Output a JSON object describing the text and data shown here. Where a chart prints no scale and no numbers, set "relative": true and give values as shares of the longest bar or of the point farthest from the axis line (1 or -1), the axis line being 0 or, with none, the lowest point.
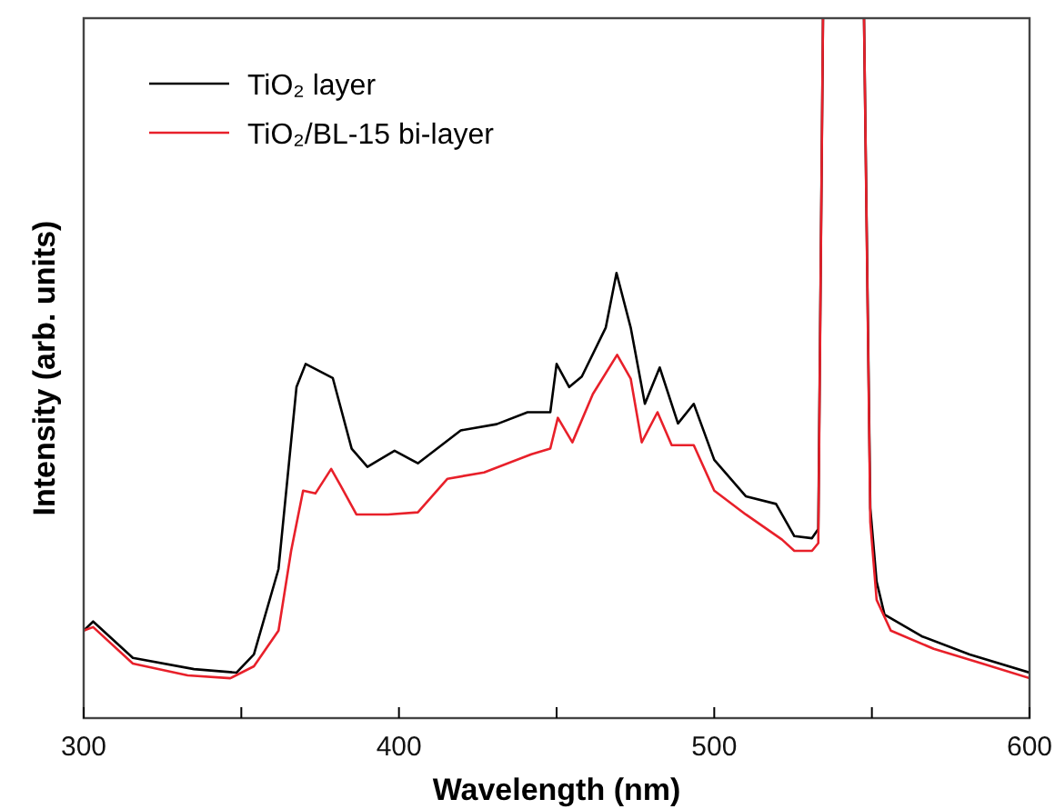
{
  "chart_data": {
    "type": "line",
    "xlabel": "Wavelength (nm)",
    "ylabel": "Intensity (arb. units)",
    "relative": true,
    "xlim": [
      300,
      600
    ],
    "xticks": [
      300,
      {
        "value": 350,
        "label": null
      },
      400,
      {
        "value": 450,
        "label": null
      },
      500,
      {
        "value": 550,
        "label": null
      },
      600
    ],
    "legend": "top left",
    "grid": false,
    "line_style": "solid",
    "marker": "none",
    "series": [
      {
        "name": "TiO₂ layer",
        "color": "#000000",
        "x": [
          300,
          303,
          315.6,
          335,
          348.5,
          354,
          361.8,
          367.5,
          370.4,
          379,
          385,
          390,
          398.6,
          406,
          419.6,
          431,
          440.8,
          448,
          450,
          454,
          458,
          465.6,
          469,
          473.5,
          478,
          482.7,
          488.5,
          493.5,
          500,
          510,
          519.6,
          525.4,
          531,
          533,
          534.5,
          541,
          547.5,
          549.5,
          551.5,
          554,
          565.8,
          581,
          600
        ],
        "values": [
          0.125,
          0.138,
          0.086,
          0.07,
          0.065,
          0.091,
          0.213,
          0.473,
          0.506,
          0.486,
          0.385,
          0.359,
          0.382,
          0.364,
          0.411,
          0.42,
          0.437,
          0.437,
          0.506,
          0.473,
          0.488,
          0.558,
          0.636,
          0.558,
          0.449,
          0.501,
          0.421,
          0.449,
          0.369,
          0.317,
          0.306,
          0.26,
          0.257,
          0.27,
          1,
          null,
          1,
          0.3,
          0.195,
          0.148,
          0.117,
          0.091,
          0.065
        ]
      },
      {
        "name": "TiO₂/BL-15 bi-layer",
        "color": "#e8202a",
        "x": [
          300,
          303,
          315.6,
          333,
          346.5,
          354,
          361.8,
          365.8,
          369.6,
          373.5,
          378.5,
          381.4,
          386.5,
          396.5,
          406,
          415.4,
          427,
          442,
          448,
          450.4,
          455,
          461.5,
          469.2,
          473.5,
          477,
          482,
          486.5,
          493.5,
          500,
          510,
          521.5,
          525.4,
          531,
          533,
          534.5,
          541,
          547.5,
          549.5,
          551.5,
          556,
          569.6,
          585,
          600
        ],
        "values": [
          0.125,
          0.13,
          0.078,
          0.061,
          0.057,
          0.074,
          0.125,
          0.239,
          0.325,
          0.321,
          0.356,
          0.333,
          0.291,
          0.291,
          0.294,
          0.342,
          0.351,
          0.377,
          0.385,
          0.429,
          0.394,
          0.463,
          0.519,
          0.485,
          0.394,
          0.437,
          0.39,
          0.39,
          0.325,
          0.291,
          0.255,
          0.239,
          0.239,
          0.25,
          1,
          null,
          1,
          0.28,
          0.169,
          0.125,
          0.099,
          0.078,
          0.057
        ]
      }
    ]
  }
}
